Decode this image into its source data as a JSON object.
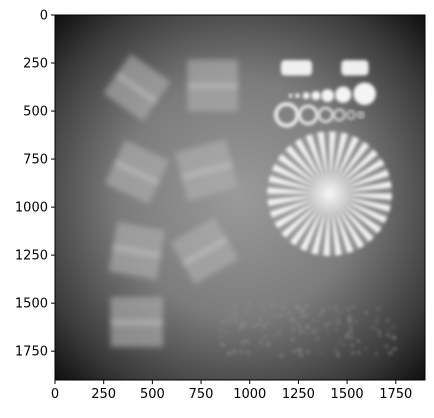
{
  "chart_data": {
    "type": "heatmap",
    "colormap": "gray",
    "xlim": [
      0,
      1900
    ],
    "ylim": [
      1900,
      0
    ],
    "xticks": [
      0,
      250,
      500,
      750,
      1000,
      1250,
      1500,
      1750
    ],
    "yticks": [
      0,
      250,
      500,
      750,
      1000,
      1250,
      1500,
      1750
    ],
    "x_tick_labels": [
      "0",
      "250",
      "500",
      "750",
      "1000",
      "1250",
      "1500",
      "1750"
    ],
    "y_tick_labels": [
      "0",
      "250",
      "500",
      "750",
      "1000",
      "1250",
      "1500",
      "1750"
    ],
    "grid": false,
    "features": [
      {
        "kind": "radial-star",
        "center": [
          1410,
          930
        ],
        "radius": 320,
        "spokes": 32
      },
      {
        "kind": "rounded-rect",
        "center": [
          1240,
          275
        ],
        "size": [
          160,
          80
        ]
      },
      {
        "kind": "rounded-rect",
        "center": [
          1540,
          275
        ],
        "size": [
          140,
          80
        ]
      },
      {
        "kind": "disk",
        "center": [
          1210,
          420
        ],
        "radius": 10
      },
      {
        "kind": "disk",
        "center": [
          1245,
          420
        ],
        "radius": 12
      },
      {
        "kind": "disk",
        "center": [
          1290,
          420
        ],
        "radius": 18
      },
      {
        "kind": "disk",
        "center": [
          1340,
          420
        ],
        "radius": 24
      },
      {
        "kind": "disk",
        "center": [
          1400,
          420
        ],
        "radius": 33
      },
      {
        "kind": "disk",
        "center": [
          1480,
          415
        ],
        "radius": 42
      },
      {
        "kind": "disk",
        "center": [
          1590,
          410
        ],
        "radius": 58
      },
      {
        "kind": "ring",
        "center": [
          1190,
          520
        ],
        "radius": 55
      },
      {
        "kind": "ring",
        "center": [
          1300,
          520
        ],
        "radius": 45
      },
      {
        "kind": "ring",
        "center": [
          1390,
          520
        ],
        "radius": 35
      },
      {
        "kind": "ring",
        "center": [
          1460,
          520
        ],
        "radius": 27
      },
      {
        "kind": "ring",
        "center": [
          1520,
          520
        ],
        "radius": 20
      },
      {
        "kind": "ring",
        "center": [
          1570,
          520
        ],
        "radius": 14
      },
      {
        "kind": "stripe-block",
        "center": [
          420,
          380
        ],
        "size": [
          250,
          250
        ],
        "angle": 35
      },
      {
        "kind": "stripe-block",
        "center": [
          810,
          370
        ],
        "size": [
          260,
          270
        ],
        "angle": 0
      },
      {
        "kind": "stripe-block",
        "center": [
          420,
          820
        ],
        "size": [
          250,
          250
        ],
        "angle": 25
      },
      {
        "kind": "stripe-block",
        "center": [
          780,
          810
        ],
        "size": [
          270,
          260
        ],
        "angle": -15
      },
      {
        "kind": "stripe-block",
        "center": [
          420,
          1230
        ],
        "size": [
          250,
          260
        ],
        "angle": 10
      },
      {
        "kind": "stripe-block",
        "center": [
          770,
          1230
        ],
        "size": [
          260,
          250
        ],
        "angle": -30
      },
      {
        "kind": "stripe-block",
        "center": [
          420,
          1600
        ],
        "size": [
          270,
          260
        ],
        "angle": 0
      }
    ]
  }
}
